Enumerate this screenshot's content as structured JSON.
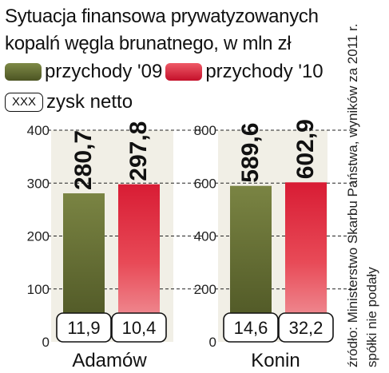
{
  "title": "Sytuacja finansowa prywatyzowanych kopalń węgla brunatnego, w mln zł",
  "legend": {
    "przychody_09": "przychody '09",
    "przychody_10": "przychody '10",
    "netto_box": "XXX",
    "netto_label": "zysk netto"
  },
  "source": "źródło: Ministerstwo Skarbu Państwa, wyników za 2011 r. spółki nie podały",
  "colors": {
    "series_09": "#626b33",
    "series_10": "#e0283e"
  },
  "chart_data": [
    {
      "type": "bar",
      "categories": [
        "Adamów"
      ],
      "ylim": [
        0,
        400
      ],
      "yticks": [
        "0",
        "100",
        "200",
        "300",
        "400"
      ],
      "series": [
        {
          "name": "przychody '09",
          "values": [
            280.7
          ],
          "labels": [
            "280,7"
          ],
          "zysk_netto": "11,9"
        },
        {
          "name": "przychody '10",
          "values": [
            297.8
          ],
          "labels": [
            "297,8"
          ],
          "zysk_netto": "10,4"
        }
      ]
    },
    {
      "type": "bar",
      "categories": [
        "Konin"
      ],
      "ylim": [
        0,
        800
      ],
      "yticks": [
        "0",
        "200",
        "400",
        "600",
        "800"
      ],
      "series": [
        {
          "name": "przychody '09",
          "values": [
            589.6
          ],
          "labels": [
            "589,6"
          ],
          "zysk_netto": "14,6"
        },
        {
          "name": "przychody '10",
          "values": [
            602.9
          ],
          "labels": [
            "602,9"
          ],
          "zysk_netto": "32,2"
        }
      ]
    }
  ]
}
